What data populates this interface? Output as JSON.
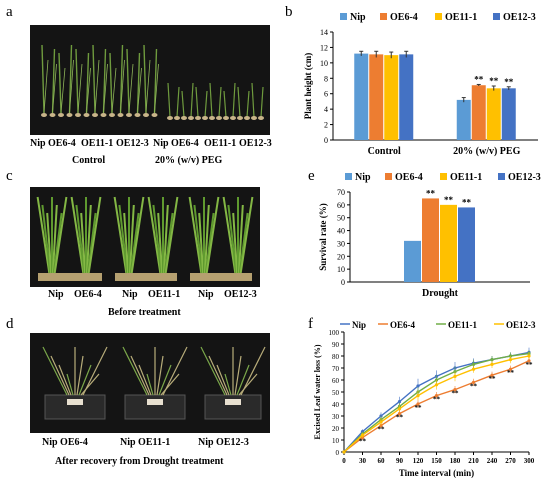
{
  "panels": {
    "a": {
      "letter": "a",
      "lane_labels": [
        "Nip",
        "OE6-4",
        "OE11-1",
        "OE12-3",
        "Nip",
        "OE6-4",
        "OE11-1",
        "OE12-3"
      ],
      "conditions": [
        "Control",
        "20% (w/v) PEG"
      ]
    },
    "c": {
      "letter": "c",
      "labels": [
        "Nip",
        "OE6-4",
        "Nip",
        "OE11-1",
        "Nip",
        "OE12-3"
      ],
      "caption": "Before treatment"
    },
    "d": {
      "letter": "d",
      "labels": [
        "Nip OE6-4",
        "Nip OE11-1",
        "Nip OE12-3"
      ],
      "caption": "After recovery from Drought treatment"
    },
    "b": {
      "letter": "b"
    },
    "e": {
      "letter": "e"
    },
    "f": {
      "letter": "f"
    }
  },
  "colors": {
    "Nip": "#5b9bd5",
    "OE6-4": "#ed7d31",
    "OE11-1": "#ffc000",
    "OE12-3": "#4472c4",
    "OE11-1_line": "#70ad47",
    "photo_bg": "#141414",
    "pot": "#c8a24a",
    "leaf": "#7ba84a"
  },
  "chart_data": [
    {
      "panel": "b",
      "type": "bar",
      "categories": [
        "Control",
        "20% (w/v) PEG"
      ],
      "series": [
        {
          "name": "Nip",
          "values": [
            11.2,
            5.2
          ],
          "errors": [
            0.3,
            0.3
          ],
          "sig": [
            "",
            ""
          ]
        },
        {
          "name": "OE6-4",
          "values": [
            11.1,
            7.1
          ],
          "errors": [
            0.4,
            0.1
          ],
          "sig": [
            "",
            "**"
          ]
        },
        {
          "name": "OE11-1",
          "values": [
            11.0,
            6.7
          ],
          "errors": [
            0.4,
            0.3
          ],
          "sig": [
            "",
            "**"
          ]
        },
        {
          "name": "OE12-3",
          "values": [
            11.1,
            6.7
          ],
          "errors": [
            0.4,
            0.2
          ],
          "sig": [
            "",
            "**"
          ]
        }
      ],
      "ylabel": "Plant height (cm)",
      "ylim": [
        0,
        14
      ],
      "yticks": [
        "0",
        "2",
        "4",
        "6",
        "8",
        "10",
        "12",
        "14"
      ],
      "legend": "top"
    },
    {
      "panel": "e",
      "type": "bar",
      "categories": [
        "Drought"
      ],
      "series": [
        {
          "name": "Nip",
          "values": [
            32
          ],
          "sig": [
            ""
          ]
        },
        {
          "name": "OE6-4",
          "values": [
            65
          ],
          "sig": [
            "**"
          ]
        },
        {
          "name": "OE11-1",
          "values": [
            60
          ],
          "sig": [
            "**"
          ]
        },
        {
          "name": "OE12-3",
          "values": [
            58
          ],
          "sig": [
            "**"
          ]
        }
      ],
      "ylabel": "Survival rate (%)",
      "ylim": [
        0,
        70
      ],
      "yticks": [
        "0",
        "10",
        "20",
        "30",
        "40",
        "50",
        "60",
        "70"
      ],
      "legend": "top"
    },
    {
      "panel": "f",
      "type": "line",
      "x": [
        0,
        30,
        60,
        90,
        120,
        150,
        180,
        210,
        240,
        270,
        300
      ],
      "series": [
        {
          "name": "Nip",
          "values": [
            0,
            17,
            30,
            42,
            55,
            63,
            70,
            74,
            77,
            80,
            83
          ],
          "errors": [
            0,
            2,
            3,
            4,
            6,
            5,
            5,
            4,
            3,
            3,
            4
          ]
        },
        {
          "name": "OE6-4",
          "values": [
            0,
            12,
            22,
            32,
            40,
            47,
            52,
            58,
            64,
            69,
            76
          ],
          "errors": [
            0,
            2,
            2,
            3,
            3,
            3,
            3,
            3,
            3,
            3,
            3
          ]
        },
        {
          "name": "OE11-1",
          "values": [
            0,
            15,
            27,
            38,
            50,
            60,
            67,
            73,
            77,
            80,
            82
          ],
          "errors": [
            0,
            2,
            3,
            3,
            4,
            4,
            4,
            4,
            3,
            3,
            3
          ]
        },
        {
          "name": "OE12-3",
          "values": [
            0,
            14,
            25,
            36,
            47,
            56,
            63,
            69,
            73,
            77,
            80
          ],
          "errors": [
            0,
            2,
            3,
            3,
            4,
            4,
            4,
            3,
            3,
            3,
            3
          ]
        }
      ],
      "sig_labels": [
        "**",
        "**",
        "**",
        "**",
        "**",
        "**",
        "**",
        "**",
        "**",
        "**"
      ],
      "xlabel": "Time interval (min)",
      "ylabel": "Excised Leaf water loss (%)",
      "xlim": [
        0,
        300
      ],
      "ylim": [
        0,
        100
      ],
      "xticks": [
        "0",
        "30",
        "60",
        "90",
        "120",
        "150",
        "180",
        "210",
        "240",
        "270",
        "300"
      ],
      "yticks": [
        "0",
        "10",
        "20",
        "30",
        "40",
        "50",
        "60",
        "70",
        "80",
        "90",
        "100"
      ],
      "legend": "top"
    }
  ]
}
